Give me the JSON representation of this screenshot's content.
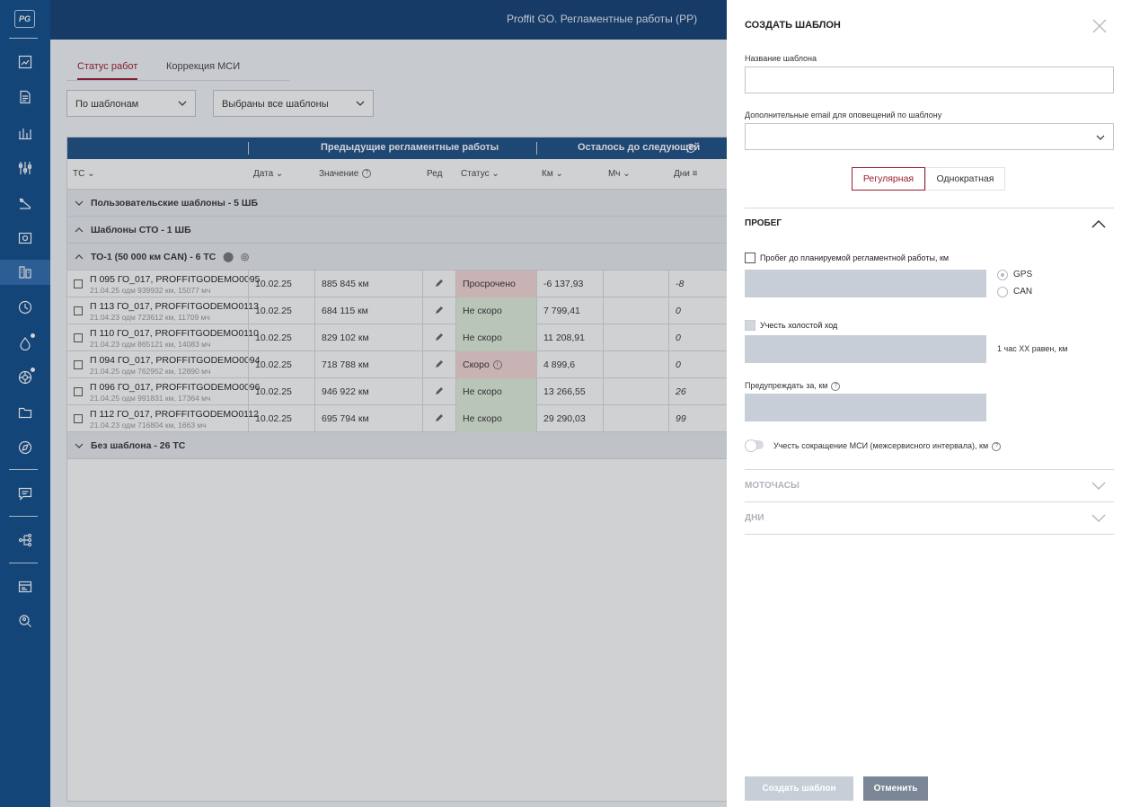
{
  "sidebar": {
    "logo": "PG",
    "items": [
      {
        "icon": "chart-icon"
      },
      {
        "icon": "document-icon"
      },
      {
        "icon": "analytics-icon"
      },
      {
        "icon": "sliders-icon"
      },
      {
        "icon": "route-icon"
      },
      {
        "icon": "camera-icon"
      },
      {
        "icon": "maintenance-icon"
      },
      {
        "icon": "clock-icon"
      },
      {
        "icon": "fuel-icon"
      },
      {
        "icon": "tire-icon"
      },
      {
        "icon": "folder-icon"
      },
      {
        "icon": "map-icon"
      },
      {
        "icon": "chat-icon"
      },
      {
        "icon": "tree-icon"
      },
      {
        "icon": "report-icon"
      },
      {
        "icon": "search-user-icon"
      }
    ]
  },
  "header": {
    "title": "Proffit GO. Регламентные работы (РР)"
  },
  "main": {
    "tabs": [
      {
        "label": "Статус работ",
        "active": true
      },
      {
        "label": "Коррекция МСИ",
        "active": false
      }
    ],
    "filter_mode": "По шаблонам",
    "filter_templates": "Выбраны все шаблоны",
    "table": {
      "group_header_prev": "Предыдущие регламентные работы",
      "group_header_next": "Осталось до следующей",
      "columns": {
        "vehicle": "ТС",
        "date": "Дата",
        "value": "Значение",
        "edit": "Ред",
        "status": "Статус",
        "km": "Км",
        "mh": "Мч",
        "days": "Дни"
      },
      "groups": [
        {
          "label": "Пользовательские шаблоны - 5 ШБ",
          "expanded": false
        },
        {
          "label": "Шаблоны СТО - 1 ШБ",
          "expanded": true
        },
        {
          "label": "ТО-1 (50 000 км CAN) - 6 ТС",
          "expanded": true
        },
        {
          "label": "Без шаблона - 26 ТС",
          "expanded": false
        }
      ],
      "rows": [
        {
          "name": "П 095 ГО_017, PROFFITGODEMO0095",
          "sub": "21.04.25 одм 939932 км, 15077 мч",
          "date": "10.02.25",
          "value": "885 845 км",
          "status": "Просрочено",
          "status_kind": "red",
          "km": "-6 137,93",
          "mh": "",
          "days": "-8"
        },
        {
          "name": "П 113 ГО_017, PROFFITGODEMO0113",
          "sub": "21.04.23 одм 723612 км, 11709 мч",
          "date": "10.02.25",
          "value": "684 115 км",
          "status": "Не скоро",
          "status_kind": "green",
          "km": "7 799,41",
          "mh": "",
          "days": "0"
        },
        {
          "name": "П 110 ГО_017, PROFFITGODEMO0110",
          "sub": "21.04.23 одм 865121 км, 14083 мч",
          "date": "10.02.25",
          "value": "829 102 км",
          "status": "Не скоро",
          "status_kind": "green",
          "km": "11 208,91",
          "mh": "",
          "days": "0"
        },
        {
          "name": "П 094 ГО_017, PROFFITGODEMO0094",
          "sub": "21.04.25 одм 762952 км, 12890 мч",
          "date": "10.02.25",
          "value": "718 788 км",
          "status": "Скоро",
          "status_kind": "red",
          "km": "4 899,6",
          "mh": "",
          "days": "0"
        },
        {
          "name": "П 096 ГО_017, PROFFITGODEMO0096",
          "sub": "21.04.25 одм 991831 км, 17364 мч",
          "date": "10.02.25",
          "value": "946 922 км",
          "status": "Не скоро",
          "status_kind": "green",
          "km": "13 266,55",
          "mh": "",
          "days": "26"
        },
        {
          "name": "П 112 ГО_017, PROFFITGODEMO0112",
          "sub": "21.04.23 одм 716804 км, 1663 мч",
          "date": "10.02.25",
          "value": "695 794 км",
          "status": "Не скоро",
          "status_kind": "green",
          "km": "29 290,03",
          "mh": "",
          "days": "99"
        }
      ]
    }
  },
  "panel": {
    "title": "СОЗДАТЬ ШАБЛОН",
    "name_label": "Название шаблона",
    "name_value": "",
    "email_label": "Дополнительные email для оповещений по шаблону",
    "email_value": "",
    "seg_regular": "Регулярная",
    "seg_once": "Однократная",
    "mileage": {
      "title": "ПРОБЕГ",
      "to_planned_label": "Пробег до планируемой регламентной работы, км",
      "gps": "GPS",
      "can": "CAN",
      "idle_label": "Учесть холостой ход",
      "idle_hint": "1 час ХХ равен, км",
      "warn_label": "Предупреждать за, км",
      "msi_label": "Учесть сокращение МСИ (межсервисного интервала), км"
    },
    "motohours_title": "МОТОЧАСЫ",
    "days_title": "ДНИ",
    "create_button": "Создать шаблон",
    "cancel_button": "Отменить"
  },
  "colors": {
    "sidebar": "#0e4c8c",
    "accent": "#9b1b30",
    "header": "#123f75"
  }
}
